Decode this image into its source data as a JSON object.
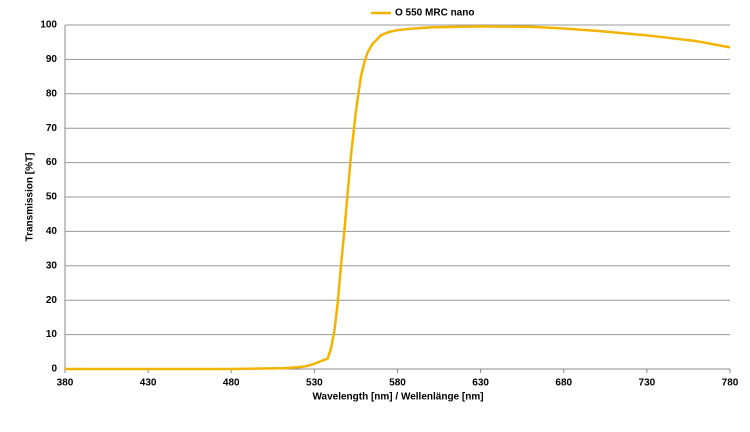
{
  "chart_data": {
    "type": "line",
    "x_label": "Wavelength [nm] / Wellenlänge [nm]",
    "y_label": "Transmission [%T]",
    "x": [
      380,
      430,
      480,
      510,
      520,
      525,
      530,
      535,
      538,
      540,
      542,
      544,
      546,
      548,
      550,
      552,
      555,
      558,
      560,
      562,
      565,
      570,
      575,
      580,
      590,
      600,
      630,
      660,
      680,
      700,
      730,
      760,
      780
    ],
    "series": [
      {
        "name": "O 550 MRC nano",
        "color": "#f2b400",
        "values": [
          0,
          0,
          0,
          0.2,
          0.5,
          0.8,
          1.5,
          2.5,
          3,
          6,
          11,
          19,
          30,
          40,
          51,
          62,
          75,
          85,
          89,
          92,
          94.5,
          97,
          98,
          98.5,
          99,
          99.3,
          99.6,
          99.5,
          99,
          98.3,
          97,
          95.3,
          93.5
        ]
      }
    ],
    "xlim": [
      380,
      780
    ],
    "xticks": [
      380,
      430,
      480,
      530,
      580,
      630,
      680,
      730,
      780
    ],
    "ylim": [
      0,
      100
    ],
    "yticks": [
      0,
      10,
      20,
      30,
      40,
      50,
      60,
      70,
      80,
      90,
      100
    ],
    "grid": true,
    "legend": "top"
  }
}
